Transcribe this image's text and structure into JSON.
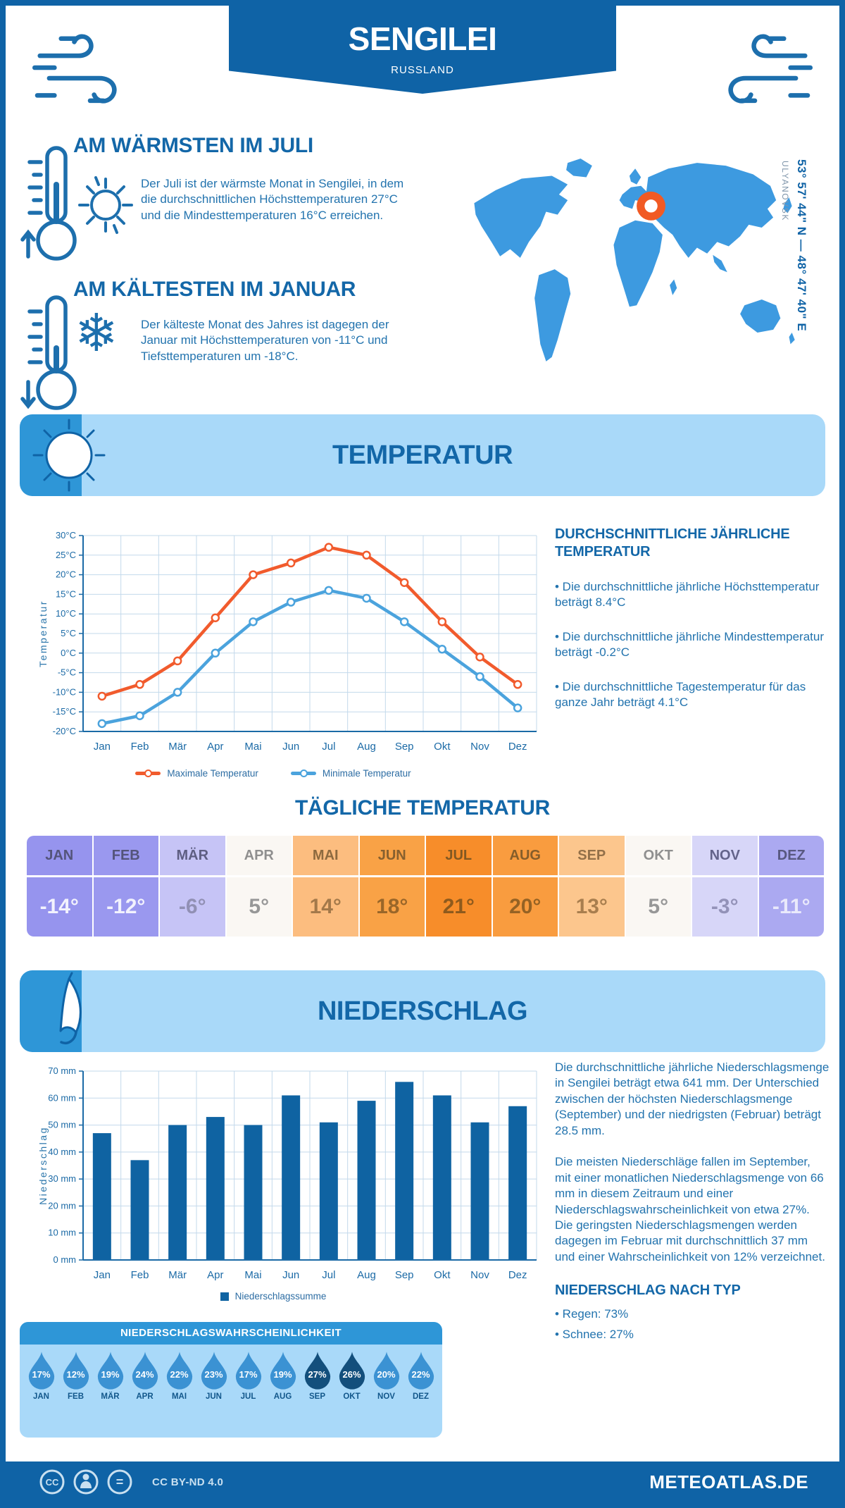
{
  "header": {
    "title": "SENGILEI",
    "subtitle": "RUSSLAND"
  },
  "warmest": {
    "title": "AM WÄRMSTEN IM JULI",
    "text": "Der Juli ist der wärmste Monat in Sengilei, in dem die durchschnittlichen Höchsttemperaturen 27°C und die Mindesttemperaturen 16°C erreichen."
  },
  "coldest": {
    "title": "AM KÄLTESTEN IM JANUAR",
    "text": "Der kälteste Monat des Jahres ist dagegen der Januar mit Höchsttemperaturen von -11°C und Tiefsttemperaturen um -18°C."
  },
  "map": {
    "coords": "53° 57' 44\" N — 48° 47' 40\" E",
    "region": "ULYANOVSK"
  },
  "colors": {
    "primary_blue": "#0f63a6",
    "map_blue": "#3d9ae0",
    "marker_orange": "#f15a24",
    "panel_light_blue": "#a9d9f9",
    "panel_accent_blue": "#2e96d7",
    "max_line": "#f15b2d",
    "min_line": "#4ba3dd",
    "bar_blue": "#0f63a2",
    "drop_blue": "#3b92d3",
    "drop_dark": "#134f7c"
  },
  "temperatur": {
    "banner": "TEMPERATUR",
    "annual_title": "DURCHSCHNITTLICHE JÄHRLICHE TEMPERATUR",
    "bullets": [
      "• Die durchschnittliche jährliche Höchsttemperatur beträgt 8.4°C",
      "• Die durchschnittliche jährliche Mindesttemperatur beträgt -0.2°C",
      "• Die durchschnittliche Tagestemperatur für das ganze Jahr beträgt 4.1°C"
    ]
  },
  "chart_data": [
    {
      "type": "line",
      "title": "TEMPERATUR",
      "x": [
        "Jan",
        "Feb",
        "Mär",
        "Apr",
        "Mai",
        "Jun",
        "Jul",
        "Aug",
        "Sep",
        "Okt",
        "Nov",
        "Dez"
      ],
      "ylabel": "Temperatur",
      "ylim": [
        -20,
        30
      ],
      "ytick_step": 5,
      "ytick_suffix": "°C",
      "grid": true,
      "legend_position": "bottom",
      "series": [
        {
          "name": "Maximale Temperatur",
          "color": "#f15b2d",
          "values": [
            -11,
            -8,
            -2,
            9,
            20,
            23,
            27,
            25,
            18,
            8,
            -1,
            -8
          ]
        },
        {
          "name": "Minimale Temperatur",
          "color": "#4ba3dd",
          "values": [
            -18,
            -16,
            -10,
            0,
            8,
            13,
            16,
            14,
            8,
            1,
            -6,
            -14
          ]
        }
      ]
    },
    {
      "type": "bar",
      "title": "NIEDERSCHLAG",
      "categories": [
        "Jan",
        "Feb",
        "Mär",
        "Apr",
        "Mai",
        "Jun",
        "Jul",
        "Aug",
        "Sep",
        "Okt",
        "Nov",
        "Dez"
      ],
      "values": [
        47,
        37,
        50,
        53,
        50,
        61,
        51,
        59,
        66,
        61,
        51,
        57
      ],
      "ylabel": "Niederschlag",
      "ylim": [
        0,
        70
      ],
      "ytick_step": 10,
      "ytick_suffix": " mm",
      "grid": true,
      "bar_color": "#0f63a2",
      "legend": [
        "Niederschlagssumme"
      ]
    }
  ],
  "daily_temp": {
    "title": "TÄGLICHE TEMPERATUR",
    "cells": [
      {
        "m": "JAN",
        "v": "-14°",
        "bg": "#9694ee",
        "mfg": "#54547a",
        "vfg": "#f2f2fd"
      },
      {
        "m": "FEB",
        "v": "-12°",
        "bg": "#9a98ef",
        "mfg": "#54547a",
        "vfg": "#f2f2fd"
      },
      {
        "m": "MÄR",
        "v": "-6°",
        "bg": "#c6c4f6",
        "mfg": "#5e5e82",
        "vfg": "#9190b4"
      },
      {
        "m": "APR",
        "v": "5°",
        "bg": "#faf7f3",
        "mfg": "#8f8f8f",
        "vfg": "#979797"
      },
      {
        "m": "MAI",
        "v": "14°",
        "bg": "#fcbd7f",
        "mfg": "#8d6a3f",
        "vfg": "#a3794a"
      },
      {
        "m": "JUN",
        "v": "18°",
        "bg": "#f9a246",
        "mfg": "#87602f",
        "vfg": "#996629"
      },
      {
        "m": "JUL",
        "v": "21°",
        "bg": "#f78d2a",
        "mfg": "#815822",
        "vfg": "#8e5a1d"
      },
      {
        "m": "AUG",
        "v": "20°",
        "bg": "#f99c3f",
        "mfg": "#855d2a",
        "vfg": "#956224"
      },
      {
        "m": "SEP",
        "v": "13°",
        "bg": "#fcc68d",
        "mfg": "#937049",
        "vfg": "#a87e4e"
      },
      {
        "m": "OKT",
        "v": "5°",
        "bg": "#faf7f3",
        "mfg": "#8f8f8f",
        "vfg": "#979797"
      },
      {
        "m": "NOV",
        "v": "-3°",
        "bg": "#d7d6f8",
        "mfg": "#63638a",
        "vfg": "#9392b8"
      },
      {
        "m": "DEZ",
        "v": "-11°",
        "bg": "#aba9f1",
        "mfg": "#585880",
        "vfg": "#e9e9fb"
      }
    ]
  },
  "niederschlag": {
    "banner": "NIEDERSCHLAG",
    "para1": "Die durchschnittliche jährliche Niederschlagsmenge in Sengilei beträgt etwa 641 mm. Der Unterschied zwischen der höchsten Niederschlagsmenge (September) und der niedrigsten (Februar) beträgt 28.5 mm.",
    "para2": "Die meisten Niederschläge fallen im September, mit einer monatlichen Niederschlagsmenge von 66 mm in diesem Zeitraum und einer Niederschlagswahrscheinlichkeit von etwa 27%. Die geringsten Niederschlagsmengen werden dagegen im Februar mit durchschnittlich 37 mm und einer Wahrscheinlichkeit von 12% verzeichnet.",
    "type_title": "NIEDERSCHLAG NACH TYP",
    "types": [
      "• Regen: 73%",
      "• Schnee: 27%"
    ]
  },
  "precip_prob": {
    "title": "NIEDERSCHLAGSWAHRSCHEINLICHKEIT",
    "items": [
      {
        "month": "JAN",
        "pct": "17%",
        "color": "#3b92d3"
      },
      {
        "month": "FEB",
        "pct": "12%",
        "color": "#3b92d3"
      },
      {
        "month": "MÄR",
        "pct": "19%",
        "color": "#3b92d3"
      },
      {
        "month": "APR",
        "pct": "24%",
        "color": "#3b92d3"
      },
      {
        "month": "MAI",
        "pct": "22%",
        "color": "#3b92d3"
      },
      {
        "month": "JUN",
        "pct": "23%",
        "color": "#3b92d3"
      },
      {
        "month": "JUL",
        "pct": "17%",
        "color": "#3b92d3"
      },
      {
        "month": "AUG",
        "pct": "19%",
        "color": "#3b92d3"
      },
      {
        "month": "SEP",
        "pct": "27%",
        "color": "#134f7c"
      },
      {
        "month": "OKT",
        "pct": "26%",
        "color": "#134f7c"
      },
      {
        "month": "NOV",
        "pct": "20%",
        "color": "#3b92d3"
      },
      {
        "month": "DEZ",
        "pct": "22%",
        "color": "#3b92d3"
      }
    ]
  },
  "footer": {
    "license": "CC BY-ND 4.0",
    "site": "METEOATLAS.DE"
  }
}
